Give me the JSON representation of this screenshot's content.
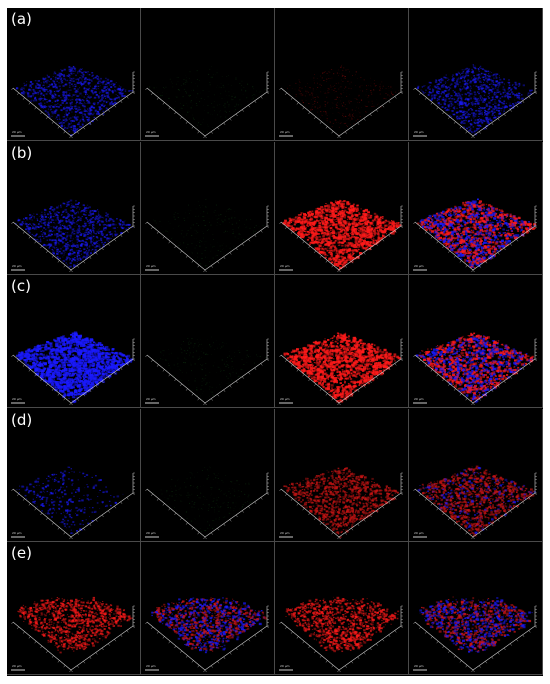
{
  "figure": {
    "rows": [
      {
        "label": "(a)",
        "panels": [
          "blue",
          "green-dim",
          "red-dim",
          "blue"
        ]
      },
      {
        "label": "(b)",
        "panels": [
          "blue",
          "green-dim",
          "red",
          "merge"
        ]
      },
      {
        "label": "(c)",
        "panels": [
          "blue-dense",
          "green-dim",
          "red",
          "merge"
        ]
      },
      {
        "label": "(d)",
        "panels": [
          "blue-sparse",
          "green-dim",
          "red-mid",
          "red-merge"
        ]
      },
      {
        "label": "(e)",
        "panels": [
          "red-pile",
          "merge-pile",
          "red-pile",
          "merge-pile"
        ]
      }
    ],
    "scale_bar_label": "20 µm",
    "colors": {
      "background": "#000000",
      "blue": "#1a1aff",
      "red": "#ff1a1a",
      "green": "#0f3a12",
      "axis": "#cfcfcf"
    }
  }
}
